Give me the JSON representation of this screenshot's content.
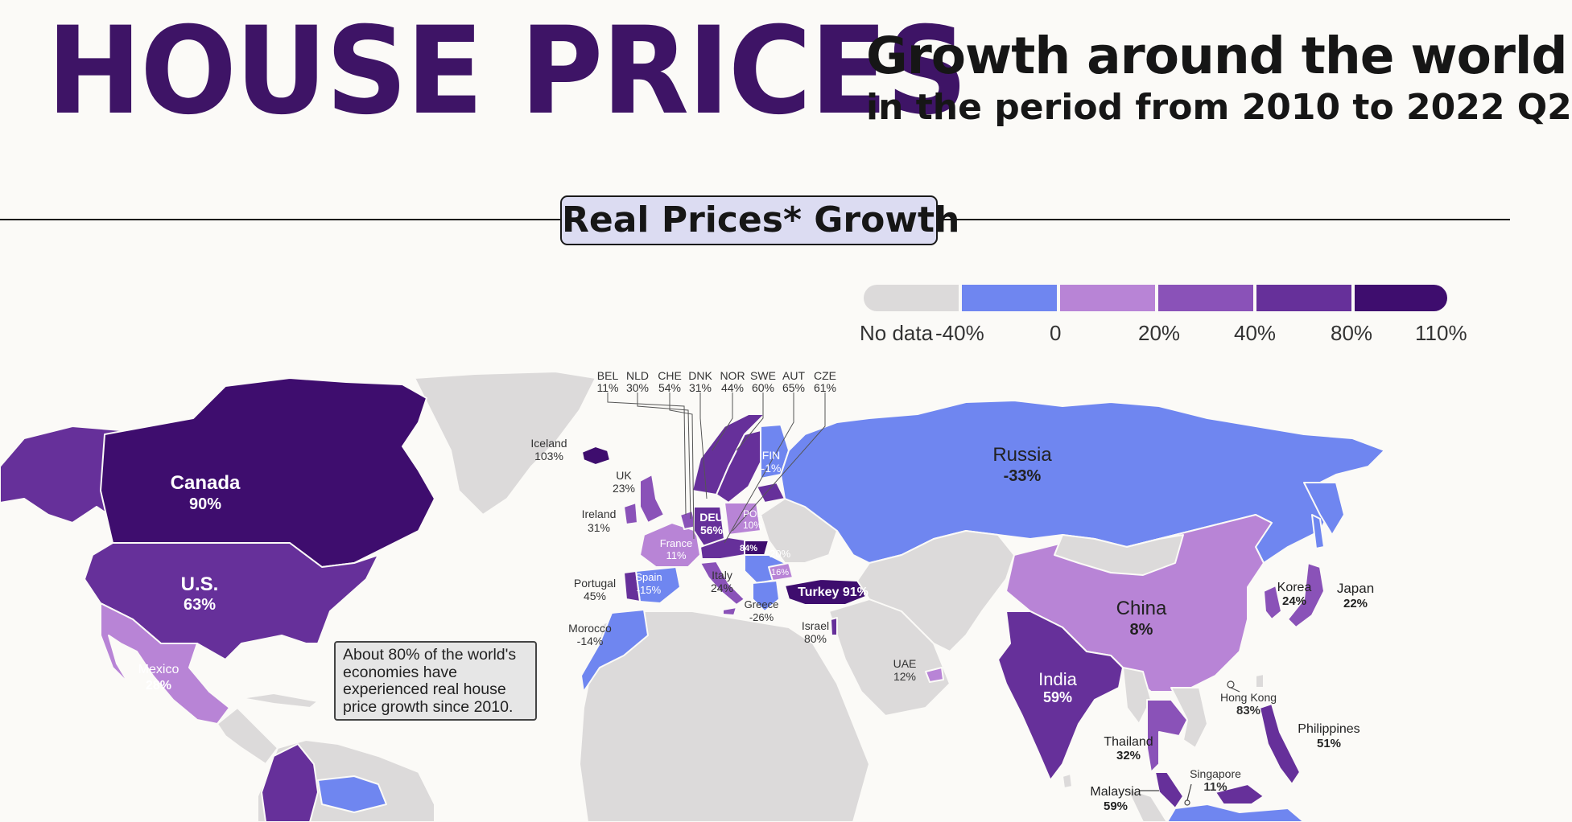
{
  "header": {
    "title": "HOUSE PRICES",
    "subtitle_line1": "Growth around the world",
    "subtitle_line2": "in the period from 2010 to 2022 Q2"
  },
  "section_title": "Real Prices* Growth",
  "legend": {
    "labels": [
      "No data",
      "-40%",
      "0",
      "20%",
      "40%",
      "80%",
      "110%"
    ],
    "colors": [
      "#dcdada",
      "#6f86f0",
      "#b884d6",
      "#8a52b8",
      "#66309a",
      "#3e0d6e"
    ]
  },
  "colors": {
    "no_data": "#dcdada",
    "neg": "#6f86f0",
    "c0_20": "#b884d6",
    "c20_40": "#8a52b8",
    "c40_80": "#66309a",
    "c80_110": "#3e0d6e",
    "title": "#3e1466",
    "water": "#fbfaf7"
  },
  "countries": {
    "canada": {
      "name": "Canada",
      "value": "90%"
    },
    "us": {
      "name": "U.S.",
      "value": "63%"
    },
    "mexico": {
      "name": "Mexico",
      "value": "28%"
    },
    "iceland": {
      "name": "Iceland",
      "value": "103%"
    },
    "uk": {
      "name": "UK",
      "value": "23%"
    },
    "ireland": {
      "name": "Ireland",
      "value": "31%"
    },
    "portugal": {
      "name": "Portugal",
      "value": "45%"
    },
    "spain": {
      "name": "Spain",
      "value": "-15%"
    },
    "france": {
      "name": "France",
      "value": "11%"
    },
    "italy": {
      "name": "Italy",
      "value": "24%"
    },
    "greece": {
      "name": "Greece",
      "value": "-26%"
    },
    "morocco": {
      "name": "Morocco",
      "value": "-14%"
    },
    "israel": {
      "name": "Israel",
      "value": "80%"
    },
    "uae": {
      "name": "UAE",
      "value": "12%"
    },
    "deu": {
      "name": "DEU",
      "value": "56%"
    },
    "pol": {
      "name": "POL",
      "value": "10%"
    },
    "fin": {
      "name": "FIN",
      "value": "-1%"
    },
    "russia": {
      "name": "Russia",
      "value": "-33%"
    },
    "turkey": {
      "name": "Turkey",
      "value": "91%"
    },
    "china": {
      "name": "China",
      "value": "8%"
    },
    "india": {
      "name": "India",
      "value": "59%"
    },
    "korea": {
      "name": "Korea",
      "value": "24%"
    },
    "japan": {
      "name": "Japan",
      "value": "22%"
    },
    "hongkong": {
      "name": "Hong Kong",
      "value": "83%"
    },
    "thailand": {
      "name": "Thailand",
      "value": "32%"
    },
    "philippines": {
      "name": "Philippines",
      "value": "51%"
    },
    "singapore": {
      "name": "Singapore",
      "value": "11%"
    },
    "malaysia": {
      "name": "Malaysia",
      "value": "59%"
    },
    "hun": {
      "value": "84%"
    },
    "sem": {
      "value": "-20%"
    },
    "bgr": {
      "value": "16%"
    }
  },
  "small_eu": [
    {
      "code": "BEL",
      "value": "11%"
    },
    {
      "code": "NLD",
      "value": "30%"
    },
    {
      "code": "CHE",
      "value": "54%"
    },
    {
      "code": "DNK",
      "value": "31%"
    },
    {
      "code": "NOR",
      "value": "44%"
    },
    {
      "code": "SWE",
      "value": "60%"
    },
    {
      "code": "AUT",
      "value": "65%"
    },
    {
      "code": "CZE",
      "value": "61%"
    }
  ],
  "annotation": "About 80% of the world's economies have experienced real house price growth since 2010."
}
